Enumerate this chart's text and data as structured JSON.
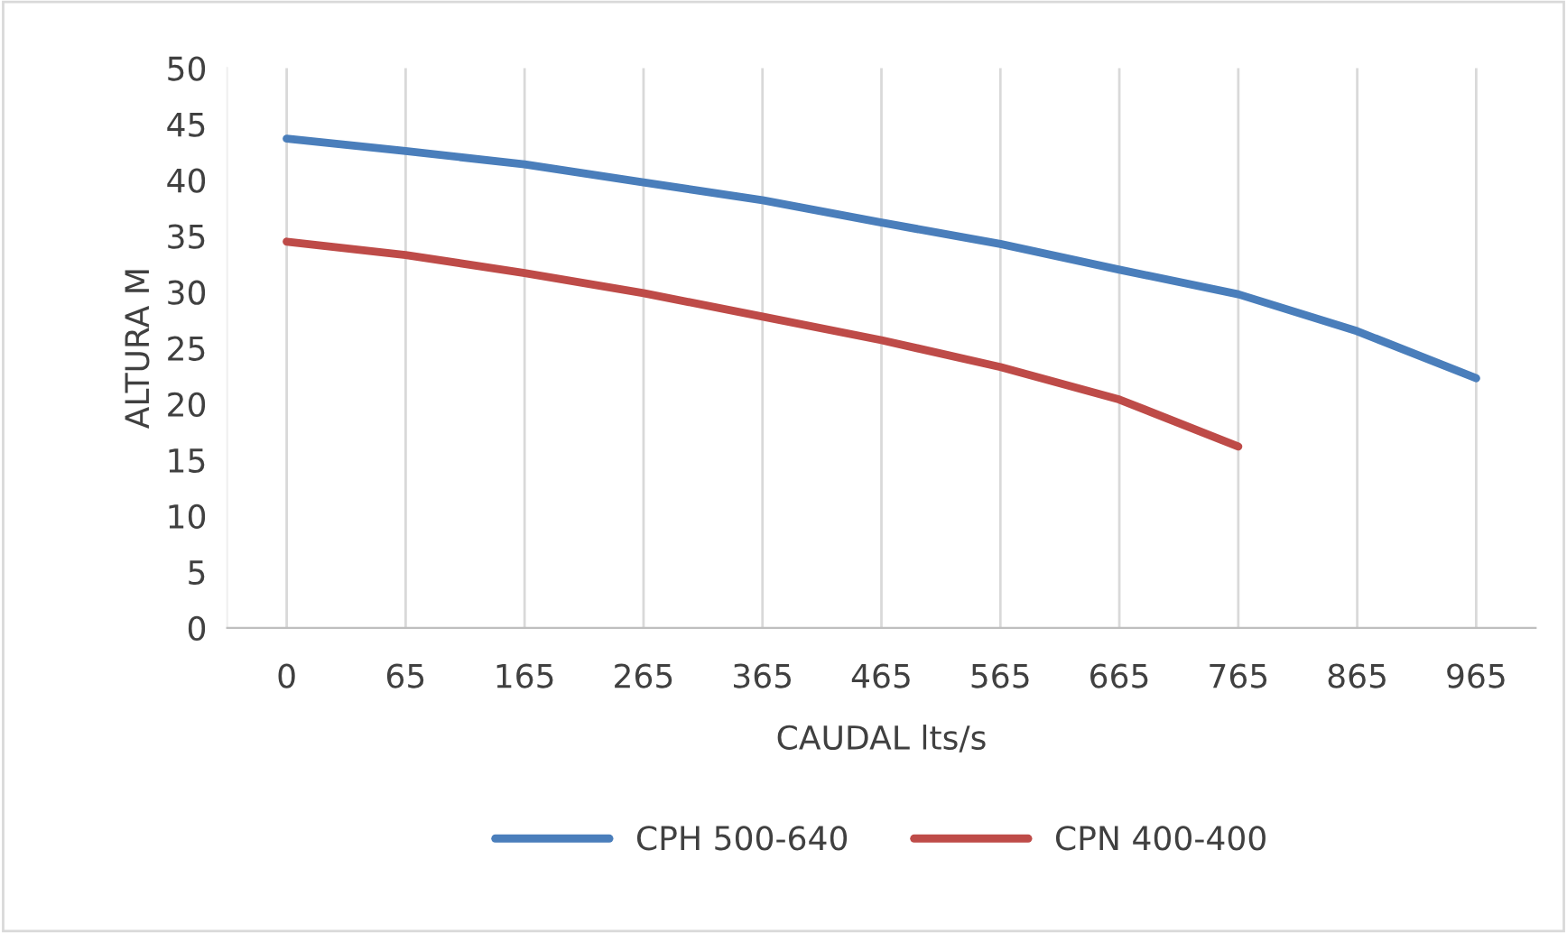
{
  "chart_data": {
    "type": "line",
    "ylabel": "ALTURA M",
    "xlabel": "CAUDAL lts/s",
    "categories": [
      "0",
      "65",
      "165",
      "265",
      "365",
      "465",
      "565",
      "665",
      "765",
      "865",
      "965"
    ],
    "series": [
      {
        "name": "CPH 500-640",
        "color": "#4a7ebb",
        "values": [
          43.7,
          42.6,
          41.4,
          39.8,
          38.2,
          36.2,
          34.3,
          32.0,
          29.8,
          26.5,
          22.3
        ]
      },
      {
        "name": "CPN 400-400",
        "color": "#be4b48",
        "values": [
          34.5,
          33.3,
          31.7,
          29.9,
          27.8,
          25.7,
          23.3,
          20.4,
          16.2,
          null,
          null
        ]
      }
    ],
    "ylim": [
      0,
      50
    ],
    "yticks": [
      0,
      5,
      10,
      15,
      20,
      25,
      30,
      35,
      40,
      45,
      50
    ],
    "grid": "x",
    "legend": "bottom",
    "marker": "none",
    "line_style": "solid"
  }
}
